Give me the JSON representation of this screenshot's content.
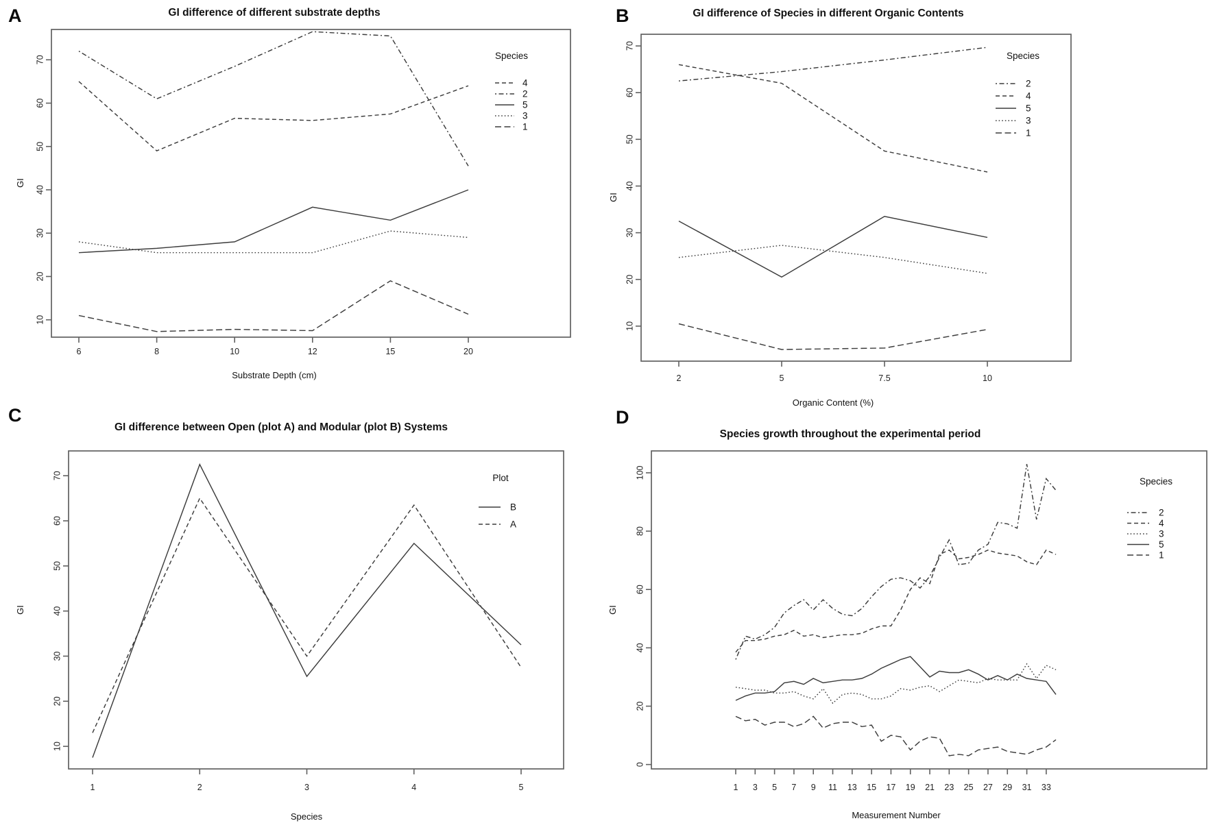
{
  "figure": {
    "background": "#ffffff",
    "line_color": "#3c3c3c",
    "frame_color": "#606060",
    "text_color": "#111111",
    "panel_letters": {
      "a": "A",
      "b": "B",
      "c": "C",
      "d": "D"
    }
  },
  "chart_data": [
    {
      "panel": "A",
      "type": "line",
      "title": "GI difference of different substrate depths",
      "xlabel": "Substrate Depth (cm)",
      "ylabel": "GI",
      "x_ticklabels": [
        "6",
        "8",
        "10",
        "12",
        "15",
        "20"
      ],
      "yticks": [
        10,
        20,
        30,
        40,
        50,
        60,
        70
      ],
      "ylim": [
        6,
        77
      ],
      "grid": false,
      "legend_title": "Species",
      "legend_position": "top-right-inside",
      "series": [
        {
          "name": "4",
          "linetype": "dashed",
          "values": [
            65,
            49,
            56.5,
            56,
            57.5,
            64
          ]
        },
        {
          "name": "2",
          "linetype": "dotdash",
          "values": [
            72,
            61,
            68.5,
            76.5,
            75.5,
            45.5
          ]
        },
        {
          "name": "5",
          "linetype": "solid",
          "values": [
            25.5,
            26.5,
            28,
            36,
            33,
            40
          ]
        },
        {
          "name": "3",
          "linetype": "dotted",
          "values": [
            28,
            25.5,
            25.5,
            25.5,
            30.5,
            29
          ]
        },
        {
          "name": "1",
          "linetype": "longdash",
          "values": [
            11,
            7.3,
            7.8,
            7.5,
            19,
            11.3
          ]
        }
      ]
    },
    {
      "panel": "B",
      "type": "line",
      "title": "GI difference of Species in different Organic Contents",
      "xlabel": "Organic Content (%)",
      "ylabel": "GI",
      "x_ticklabels": [
        "2",
        "5",
        "7.5",
        "10"
      ],
      "yticks": [
        10,
        20,
        30,
        40,
        50,
        60,
        70
      ],
      "ylim": [
        2.5,
        72.5
      ],
      "grid": false,
      "legend_title": "Species",
      "legend_position": "top-right-inside",
      "series": [
        {
          "name": "2",
          "linetype": "dotdash",
          "values": [
            62.5,
            64.5,
            67,
            69.7
          ]
        },
        {
          "name": "4",
          "linetype": "dashed",
          "values": [
            66,
            62,
            47.5,
            43
          ]
        },
        {
          "name": "5",
          "linetype": "solid",
          "values": [
            32.5,
            20.5,
            33.5,
            29
          ]
        },
        {
          "name": "3",
          "linetype": "dotted",
          "values": [
            24.7,
            27.3,
            24.7,
            21.3
          ]
        },
        {
          "name": "1",
          "linetype": "longdash",
          "values": [
            10.5,
            5,
            5.3,
            9.3
          ]
        }
      ]
    },
    {
      "panel": "C",
      "type": "line",
      "title": "GI difference between Open (plot A) and Modular (plot B) Systems",
      "xlabel": "Species",
      "ylabel": "GI",
      "x_ticklabels": [
        "1",
        "2",
        "3",
        "4",
        "5"
      ],
      "yticks": [
        10,
        20,
        30,
        40,
        50,
        60,
        70
      ],
      "ylim": [
        5,
        75.5
      ],
      "grid": false,
      "legend_title": "Plot",
      "legend_position": "top-right-inside",
      "series": [
        {
          "name": "B",
          "linetype": "solid",
          "values": [
            7.5,
            72.5,
            25.5,
            55,
            32.5
          ]
        },
        {
          "name": "A",
          "linetype": "dashed",
          "values": [
            13,
            65,
            30,
            63.5,
            27.5
          ]
        }
      ]
    },
    {
      "panel": "D",
      "type": "line",
      "title": "Species growth throughout the experimental period",
      "xlabel": "Measurement Number",
      "ylabel": "GI",
      "x": [
        1,
        2,
        3,
        4,
        5,
        6,
        7,
        8,
        9,
        10,
        11,
        12,
        13,
        14,
        15,
        16,
        17,
        18,
        19,
        20,
        21,
        22,
        23,
        24,
        25,
        26,
        27,
        28,
        29,
        30,
        31,
        32,
        33,
        34
      ],
      "xtick_values": [
        1,
        3,
        5,
        7,
        9,
        11,
        13,
        15,
        17,
        19,
        21,
        23,
        25,
        27,
        29,
        31,
        33
      ],
      "x_ticklabels": [
        "1",
        "3",
        "5",
        "7",
        "9",
        "11",
        "13",
        "15",
        "17",
        "19",
        "21",
        "23",
        "25",
        "27",
        "29",
        "31",
        "33"
      ],
      "yticks": [
        0,
        20,
        40,
        60,
        80,
        100
      ],
      "ylim": [
        -1.5,
        107.5
      ],
      "grid": false,
      "legend_title": "Species",
      "legend_position": "top-right-inside",
      "series": [
        {
          "name": "2",
          "linetype": "dotdash",
          "values": [
            36,
            44,
            43,
            44.5,
            47,
            52,
            54.5,
            56.5,
            53,
            56.5,
            53.5,
            51.5,
            51,
            53.5,
            57.5,
            61,
            63.5,
            64,
            63,
            60.5,
            64.5,
            71,
            77,
            68.5,
            69,
            73.5,
            75.5,
            83,
            82.5,
            81,
            103,
            84,
            98,
            94
          ]
        },
        {
          "name": "4",
          "linetype": "dashed",
          "values": [
            38.5,
            42.5,
            42.5,
            43,
            44,
            44.5,
            46,
            44,
            44.5,
            43.5,
            44,
            44.5,
            44.5,
            45,
            46.5,
            47.5,
            47.5,
            53,
            60,
            64,
            62,
            72,
            73.5,
            70.5,
            71,
            72,
            73.5,
            72.5,
            72,
            71.5,
            69.5,
            68.5,
            73.5,
            72
          ]
        },
        {
          "name": "3",
          "linetype": "dotted",
          "values": [
            26.5,
            26,
            25.5,
            25.5,
            24.5,
            24.5,
            25,
            23.5,
            22.5,
            26,
            21,
            24,
            24.5,
            24,
            22.5,
            22.5,
            23.5,
            26,
            25.5,
            26.5,
            27,
            25,
            27,
            29,
            28.5,
            28,
            29.5,
            29,
            29,
            29,
            34.5,
            29.5,
            34,
            32.5
          ]
        },
        {
          "name": "5",
          "linetype": "solid",
          "values": [
            22,
            23.5,
            24.5,
            24.5,
            25,
            28,
            28.5,
            27.5,
            29.5,
            28,
            28.5,
            29,
            29,
            29.5,
            31,
            33,
            34.5,
            36,
            37,
            33.5,
            30,
            32,
            31.5,
            31.5,
            32.5,
            31,
            29,
            30.5,
            29,
            31,
            29.5,
            29,
            28.5,
            24
          ]
        },
        {
          "name": "1",
          "linetype": "longdash",
          "values": [
            16.5,
            15,
            15.5,
            13.5,
            14.5,
            14.5,
            13,
            14,
            16.5,
            12.5,
            14,
            14.5,
            14.5,
            13,
            13.5,
            8,
            10,
            9.5,
            5,
            8,
            9.5,
            9,
            3,
            3.5,
            3,
            5,
            5.5,
            6,
            4.5,
            4,
            3.5,
            5,
            6,
            8.5
          ]
        }
      ]
    }
  ]
}
